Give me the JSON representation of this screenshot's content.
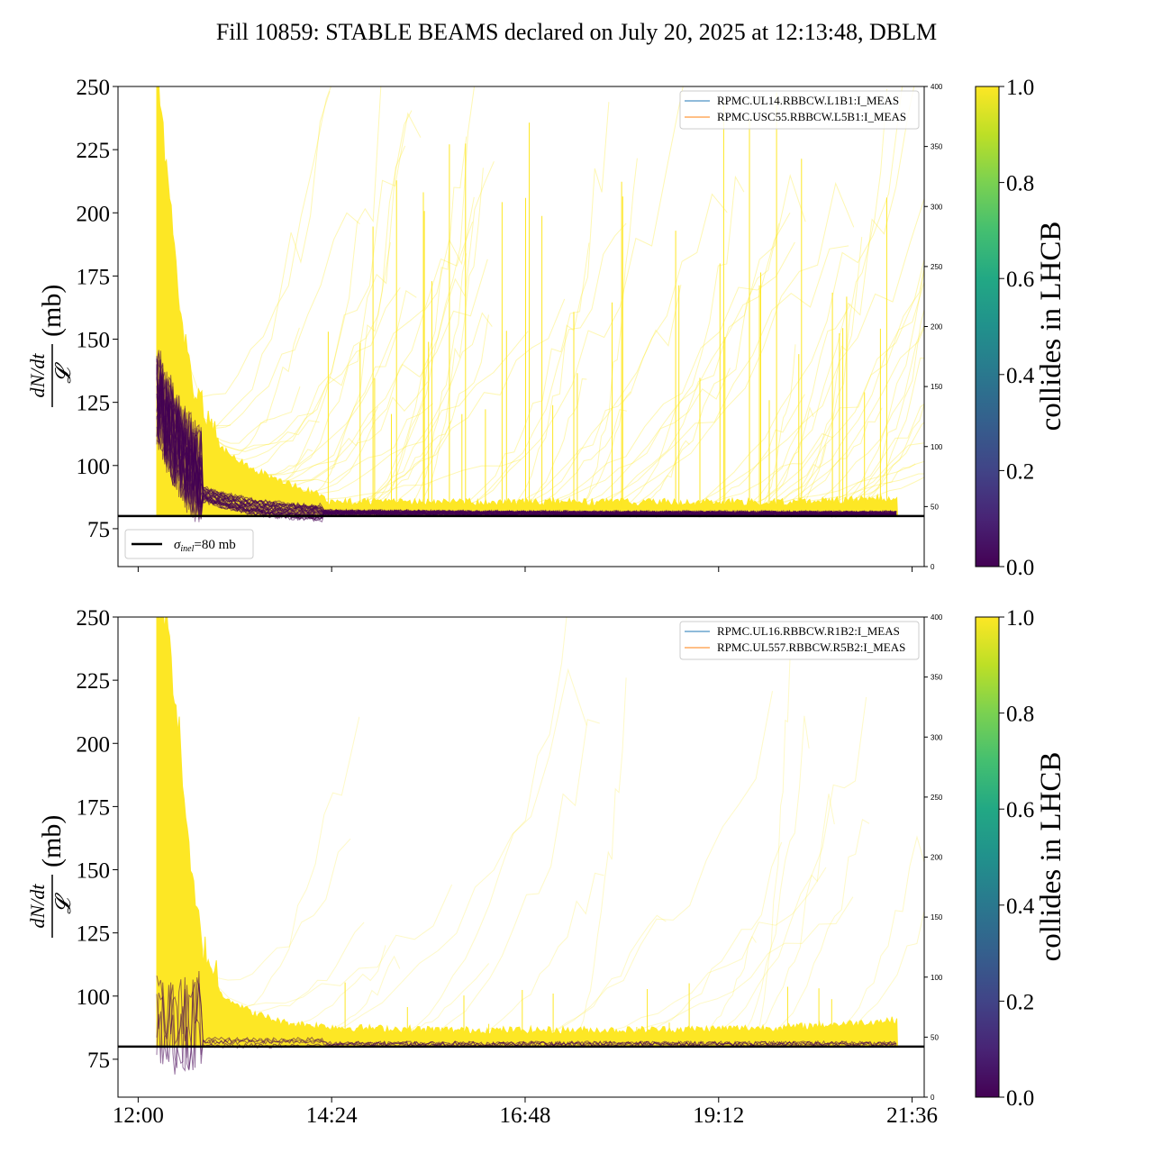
{
  "chart_data": {
    "type": "line",
    "title": "Fill 10859: STABLE BEAMS declared on July 20, 2025 at 12:13:48, DBLM",
    "x_ticks": [
      "12:00",
      "14:24",
      "16:48",
      "19:12",
      "21:36"
    ],
    "x_tick_hours": [
      12.0,
      14.4,
      16.8,
      19.2,
      21.6
    ],
    "xlim_hours": [
      11.75,
      21.75
    ],
    "colorbar": {
      "label": "collides in LHCB",
      "ticks": [
        "0.0",
        "0.2",
        "0.4",
        "0.6",
        "0.8",
        "1.0"
      ],
      "colormap": "viridis"
    },
    "reference_line": {
      "value": 80,
      "label": "σinel=80 mb",
      "sigma": "σ",
      "sub": "inel",
      "rest": "=80 mb"
    },
    "panels": [
      {
        "ylabel": "dN/dt / 𝓛 (mb)",
        "ylabel_parts": {
          "num": "dN/dt",
          "den": "𝓛",
          "unit": "(mb)"
        },
        "ylim": [
          60,
          250
        ],
        "y_ticks": [
          "75",
          "100",
          "125",
          "150",
          "175",
          "200",
          "225",
          "250"
        ],
        "y2lim": [
          0,
          400
        ],
        "y2_ticks": [
          "0",
          "50",
          "100",
          "150",
          "200",
          "250",
          "300",
          "350",
          "400"
        ],
        "legend": [
          "RPMC.UL14.RBBCW.L1B1:I_MEAS",
          "RPMC.USC55.RBBCW.L5B1:I_MEAS"
        ],
        "show_ref_legend": true,
        "baseline_collide_1": [
          [
            12.23,
            250
          ],
          [
            12.35,
            210
          ],
          [
            12.5,
            160
          ],
          [
            12.7,
            120
          ],
          [
            13.0,
            106
          ],
          [
            13.4,
            97
          ],
          [
            13.8,
            92
          ],
          [
            14.3,
            86
          ],
          [
            14.34,
            84
          ],
          [
            16.0,
            84
          ],
          [
            18.0,
            84
          ],
          [
            20.0,
            84
          ],
          [
            21.0,
            85
          ],
          [
            21.4,
            86
          ]
        ],
        "baseline_collide_0": [
          [
            12.23,
            120
          ],
          [
            12.35,
            110
          ],
          [
            12.55,
            96
          ],
          [
            12.8,
            89
          ],
          [
            13.1,
            86
          ],
          [
            13.4,
            84
          ],
          [
            13.8,
            82.5
          ],
          [
            14.3,
            81.5
          ],
          [
            16.0,
            81.2
          ],
          [
            18.0,
            81
          ],
          [
            20.0,
            81
          ],
          [
            21.4,
            81
          ]
        ]
      },
      {
        "ylabel": "dN/dt / 𝓛 (mb)",
        "ylabel_parts": {
          "num": "dN/dt",
          "den": "𝓛",
          "unit": "(mb)"
        },
        "ylim": [
          60,
          250
        ],
        "y_ticks": [
          "75",
          "100",
          "125",
          "150",
          "175",
          "200",
          "225",
          "250"
        ],
        "y2lim": [
          0,
          400
        ],
        "y2_ticks": [
          "0",
          "50",
          "100",
          "150",
          "200",
          "250",
          "300",
          "350",
          "400"
        ],
        "legend": [
          "RPMC.UL16.RBBCW.R1B2:I_MEAS",
          "RPMC.UL557.RBBCW.R5B2:I_MEAS"
        ],
        "show_ref_legend": false,
        "baseline_collide_1": [
          [
            12.23,
            250
          ],
          [
            12.35,
            240
          ],
          [
            12.5,
            200
          ],
          [
            12.65,
            140
          ],
          [
            12.8,
            112
          ],
          [
            13.0,
            100
          ],
          [
            13.4,
            92
          ],
          [
            13.8,
            88
          ],
          [
            14.5,
            86
          ],
          [
            16.0,
            85
          ],
          [
            18.0,
            85
          ],
          [
            20.0,
            86
          ],
          [
            21.0,
            88
          ],
          [
            21.4,
            89
          ]
        ],
        "baseline_collide_0": [
          [
            12.23,
            81
          ],
          [
            21.4,
            81
          ]
        ]
      }
    ]
  }
}
